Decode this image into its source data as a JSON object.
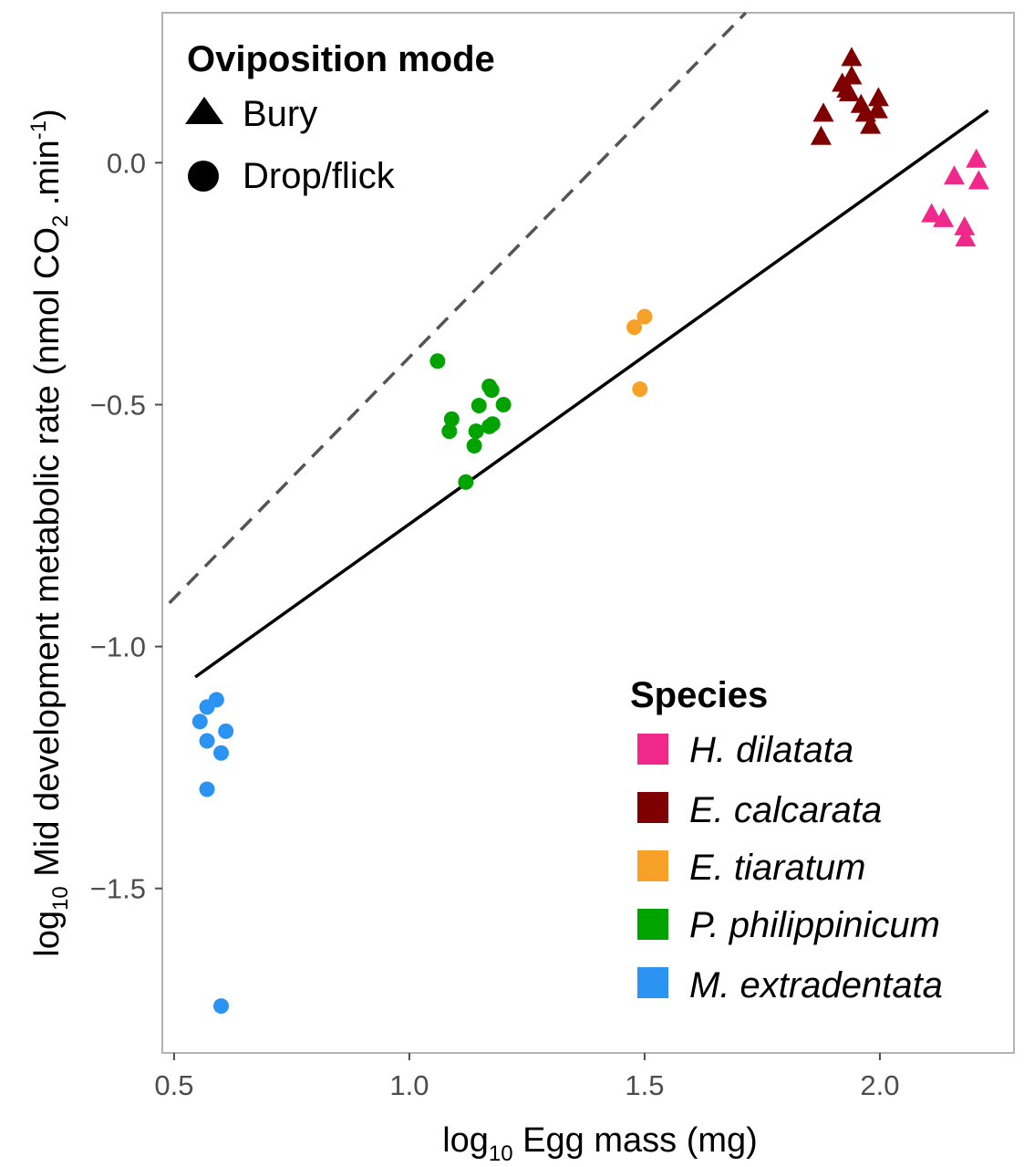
{
  "chart_data": {
    "type": "scatter",
    "title": "",
    "xlabel": {
      "prefix": "log",
      "sub": "10",
      "text": " Egg mass (mg)"
    },
    "ylabel": {
      "prefix": "log",
      "sub": "10",
      "text": " Mid development metabolic rate (nmol CO",
      "sub2": "2",
      "text2": " .min",
      "sup": "-1",
      "text3": ")"
    },
    "xlim": [
      0.475,
      2.285
    ],
    "ylim": [
      -1.84,
      0.31
    ],
    "xticks": [
      0.5,
      1.0,
      1.5,
      2.0
    ],
    "xtick_labels": [
      "0.5",
      "1.0",
      "1.5",
      "2.0"
    ],
    "yticks": [
      0.0,
      -0.5,
      -1.0,
      -1.5
    ],
    "ytick_labels": [
      "0.0",
      "−0.5",
      "−1.0",
      "−1.5"
    ],
    "grid": false,
    "lines": [
      {
        "name": "fitted",
        "style": "solid",
        "color": "#000000",
        "x": [
          0.545,
          2.23
        ],
        "y": [
          -1.063,
          0.108
        ]
      },
      {
        "name": "reference",
        "style": "dashed",
        "color": "#555555",
        "x": [
          0.49,
          1.715
        ],
        "y": [
          -0.91,
          0.31
        ]
      }
    ],
    "legend_shape": {
      "title": "Oviposition mode",
      "items": [
        {
          "label": "Bury",
          "shape": "triangle"
        },
        {
          "label": "Drop/flick",
          "shape": "circle"
        }
      ]
    },
    "legend_species": {
      "title": "Species",
      "items": [
        {
          "label": "H. dilatata",
          "color": "#f0288c"
        },
        {
          "label": "E. calcarata",
          "color": "#7f0000"
        },
        {
          "label": "E. tiaratum",
          "color": "#f7a128"
        },
        {
          "label": "P. philippinicum",
          "color": "#00a300"
        },
        {
          "label": "M. extradentata",
          "color": "#2b93f1"
        }
      ]
    },
    "series": [
      {
        "name": "H. dilatata",
        "shape": "triangle",
        "color": "#f0288c",
        "x": [
          2.205,
          2.158,
          2.21,
          2.11,
          2.135,
          2.18,
          2.182
        ],
        "y": [
          0.005,
          -0.03,
          -0.04,
          -0.108,
          -0.118,
          -0.135,
          -0.158
        ]
      },
      {
        "name": "E. calcarata",
        "shape": "triangle",
        "color": "#7f0000",
        "x": [
          1.94,
          1.94,
          1.92,
          1.93,
          1.935,
          1.96,
          1.97,
          1.997,
          1.995,
          1.98,
          1.88,
          1.875
        ],
        "y": [
          0.215,
          0.177,
          0.162,
          0.15,
          0.142,
          0.118,
          0.1,
          0.132,
          0.107,
          0.075,
          0.1,
          0.052
        ]
      },
      {
        "name": "E. tiaratum",
        "shape": "circle",
        "color": "#f7a128",
        "x": [
          1.5,
          1.478,
          1.49
        ],
        "y": [
          -0.318,
          -0.34,
          -0.468
        ]
      },
      {
        "name": "P. philippinicum",
        "shape": "circle",
        "color": "#00a300",
        "x": [
          1.06,
          1.17,
          1.175,
          1.2,
          1.148,
          1.09,
          1.085,
          1.177,
          1.17,
          1.142,
          1.138,
          1.12
        ],
        "y": [
          -0.41,
          -0.462,
          -0.47,
          -0.5,
          -0.502,
          -0.53,
          -0.555,
          -0.54,
          -0.545,
          -0.555,
          -0.585,
          -0.66
        ]
      },
      {
        "name": "M. extradentata",
        "shape": "circle",
        "color": "#2b93f1",
        "x": [
          0.59,
          0.57,
          0.555,
          0.61,
          0.57,
          0.6,
          0.57,
          0.6
        ],
        "y": [
          -1.11,
          -1.125,
          -1.155,
          -1.175,
          -1.195,
          -1.22,
          -1.295,
          -1.743
        ]
      }
    ]
  }
}
